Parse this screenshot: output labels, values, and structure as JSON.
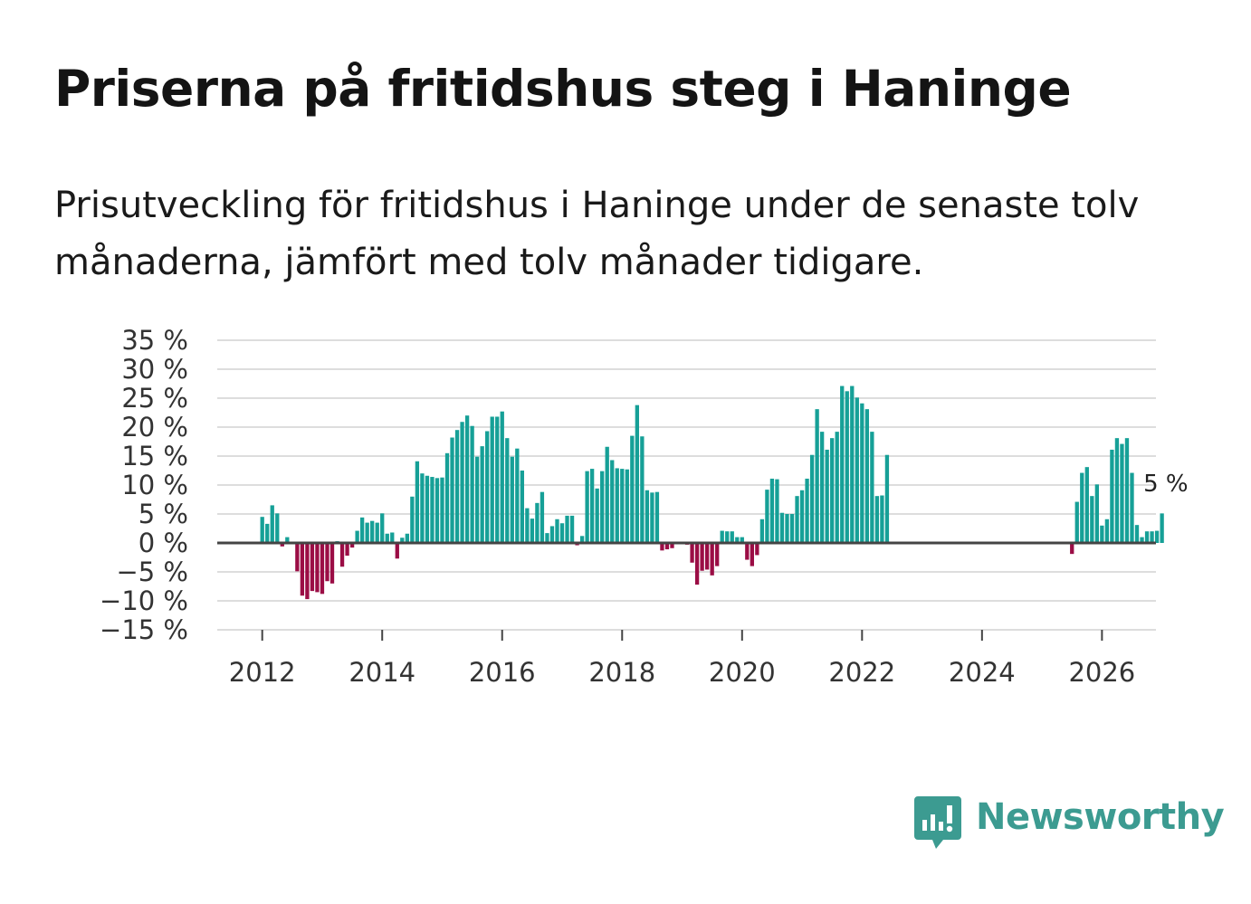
{
  "header": {
    "title": "Priserna på fritidshus steg i Haninge",
    "subtitle": "Prisutveckling för fritidshus i Haninge under de senaste tolv månaderna, jämfört med tolv månader tidigare."
  },
  "brand": {
    "name": "Newsworthy",
    "icon": "newsworthy-logo-icon",
    "color": "#3c9b91"
  },
  "colors": {
    "positive": "#16a097",
    "negative": "#9b0d45",
    "grid": "#dddddd",
    "zero_line": "#444444"
  },
  "chart_data": {
    "type": "bar",
    "title": "Priserna på fritidshus steg i Haninge",
    "xlabel": "",
    "ylabel": "",
    "ylim": [
      -15,
      35
    ],
    "xlim": [
      2011.25,
      2026.9
    ],
    "y_ticks": [
      35,
      30,
      25,
      20,
      15,
      10,
      5,
      0,
      -5,
      -10,
      -15
    ],
    "y_tick_labels": [
      "35 %",
      "30 %",
      "25 %",
      "20 %",
      "15 %",
      "10 %",
      "5 %",
      "0 %",
      "−5 %",
      "−10 %",
      "−15 %"
    ],
    "x_ticks": [
      2012,
      2014,
      2016,
      2018,
      2020,
      2022,
      2024,
      2026
    ],
    "x_tick_labels": [
      "2012",
      "2014",
      "2016",
      "2018",
      "2020",
      "2022",
      "2024",
      "2026"
    ],
    "grid": true,
    "annotation": {
      "label": "5 %",
      "value": 5
    },
    "series": [
      {
        "name": "Prisutveckling",
        "start": "2012-01",
        "frequency": "monthly",
        "values": [
          4.5,
          3.3,
          6.5,
          5.1,
          -0.6,
          1.0,
          0,
          -4.9,
          -9.1,
          -9.7,
          -8.3,
          -8.5,
          -8.8,
          -6.6,
          -7.0,
          0.3,
          -4.1,
          -2.2,
          -0.8,
          2.1,
          4.4,
          3.5,
          3.8,
          3.5,
          5.1,
          1.6,
          1.8,
          -2.7,
          0.9,
          1.6,
          8.0,
          14.1,
          12.0,
          11.6,
          11.4,
          11.2,
          11.3,
          15.5,
          18.2,
          19.5,
          20.9,
          22.0,
          20.2,
          14.9,
          16.7,
          19.3,
          21.8,
          21.8,
          22.7,
          18.1,
          14.9,
          16.3,
          12.5,
          6.0,
          4.2,
          6.9,
          8.8,
          1.7,
          2.9,
          4.1,
          3.4,
          4.7,
          4.7,
          -0.4,
          1.2,
          12.4,
          12.8,
          9.4,
          12.4,
          16.6,
          14.3,
          12.9,
          12.8,
          12.7,
          18.5,
          23.8,
          18.4,
          9.1,
          8.7,
          8.8,
          -1.3,
          -1.1,
          -0.9,
          0,
          0,
          -0.3,
          -3.4,
          -7.2,
          -4.8,
          -4.6,
          -5.6,
          -4.0,
          2.1,
          2.0,
          2.0,
          1.0,
          1.0,
          -2.9,
          -4.0,
          -2.1,
          4.1,
          9.2,
          11.1,
          11.0,
          5.2,
          5.0,
          5.0,
          8.1,
          9.1,
          11.1,
          15.2,
          23.1,
          19.2,
          16.1,
          18.1,
          19.2,
          27.1,
          26.2,
          27.1,
          25.1,
          24.1,
          23.1,
          19.2,
          8.1,
          8.2,
          15.2,
          0,
          0,
          0,
          0,
          0,
          0,
          0,
          0,
          0,
          0,
          0,
          0,
          0,
          0,
          0,
          0,
          0,
          0,
          0,
          0,
          0,
          0,
          0,
          0,
          0,
          0,
          0,
          0,
          0,
          0,
          0,
          0,
          0,
          0,
          0,
          0,
          -1.9,
          7.1,
          12.1,
          13.1,
          8.1,
          10.1,
          3.0,
          4.1,
          16.1,
          18.1,
          17.1,
          18.1,
          12.1,
          3.1,
          1.0,
          2.0,
          2.0,
          2.1,
          5.1
        ]
      }
    ]
  }
}
